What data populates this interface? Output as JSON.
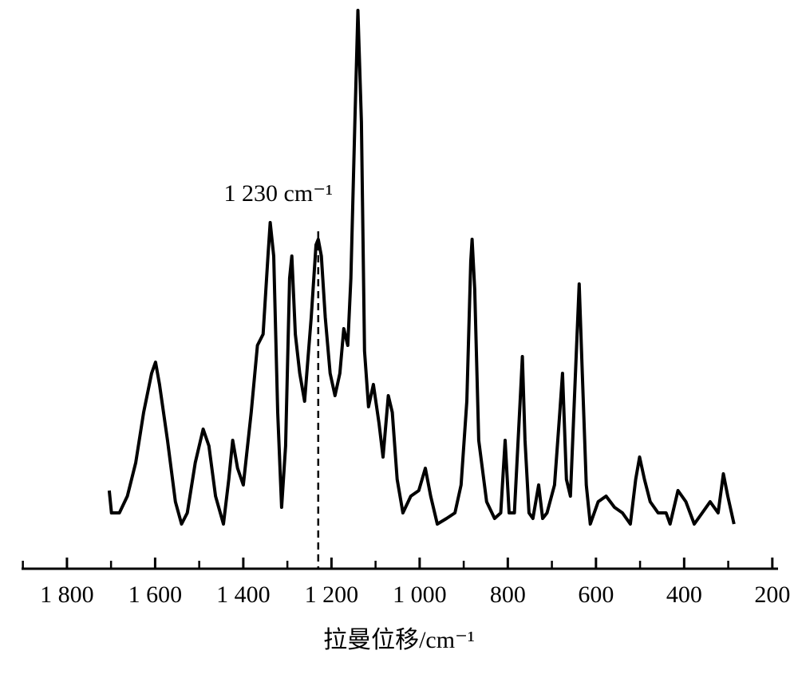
{
  "chart_data": {
    "type": "line",
    "xlabel": "拉曼位移/cm⁻¹",
    "annotation": {
      "text": "1 230 cm⁻¹",
      "x": 1230
    },
    "x": [
      1704,
      1699,
      1681,
      1663,
      1644,
      1626,
      1608,
      1599,
      1590,
      1572,
      1554,
      1540,
      1527,
      1509,
      1491,
      1478,
      1463,
      1445,
      1433,
      1424,
      1413,
      1400,
      1382,
      1368,
      1355,
      1344,
      1339,
      1331,
      1322,
      1313,
      1304,
      1295,
      1290,
      1282,
      1272,
      1261,
      1246,
      1235,
      1230,
      1223,
      1214,
      1203,
      1192,
      1181,
      1172,
      1163,
      1156,
      1147,
      1140,
      1132,
      1125,
      1116,
      1105,
      1092,
      1083,
      1071,
      1062,
      1051,
      1038,
      1020,
      1002,
      987,
      975,
      960,
      939,
      920,
      906,
      893,
      884,
      881,
      875,
      866,
      848,
      830,
      816,
      806,
      797,
      785,
      772,
      767,
      761,
      752,
      743,
      730,
      721,
      711,
      694,
      682,
      676,
      667,
      658,
      645,
      638,
      631,
      622,
      613,
      595,
      577,
      558,
      540,
      522,
      510,
      501,
      490,
      477,
      459,
      441,
      432,
      414,
      396,
      377,
      359,
      341,
      323,
      311,
      301,
      287
    ],
    "series": [
      {
        "color": "#000000",
        "values": [
          14,
          10,
          10,
          13,
          19,
          28,
          35,
          37,
          33,
          23,
          12,
          8,
          10,
          19,
          25,
          22,
          13,
          8,
          16,
          23,
          18,
          15,
          28,
          40,
          42,
          56,
          62,
          56,
          28,
          11,
          22,
          52,
          56,
          42,
          35,
          30,
          45,
          58,
          59,
          56,
          45,
          35,
          31,
          35,
          43,
          40,
          52,
          80,
          100,
          80,
          39,
          29,
          33,
          26,
          20,
          31,
          28,
          16,
          10,
          13,
          14,
          18,
          13,
          8,
          9,
          10,
          15,
          30,
          55,
          59,
          50,
          23,
          12,
          9,
          10,
          23,
          10,
          10,
          30,
          38,
          23,
          10,
          9,
          15,
          9,
          10,
          15,
          28,
          35,
          16,
          13,
          38,
          51,
          35,
          15,
          8,
          12,
          13,
          11,
          10,
          8,
          16,
          20,
          16,
          12,
          10,
          10,
          8,
          14,
          12,
          8,
          10,
          12,
          10,
          17,
          13,
          8
        ]
      }
    ],
    "xlim": [
      1903,
      187
    ],
    "ylim": [
      0,
      100
    ],
    "xticks": [
      {
        "value": 1800,
        "label": "1 800"
      },
      {
        "value": 1600,
        "label": "1 600"
      },
      {
        "value": 1400,
        "label": "1 400"
      },
      {
        "value": 1200,
        "label": "1 200"
      },
      {
        "value": 1000,
        "label": "1 000"
      },
      800,
      600,
      400,
      200
    ],
    "xminor_ticks": [
      1900,
      1700,
      1500,
      1300,
      1100,
      900,
      700,
      500,
      300
    ]
  }
}
